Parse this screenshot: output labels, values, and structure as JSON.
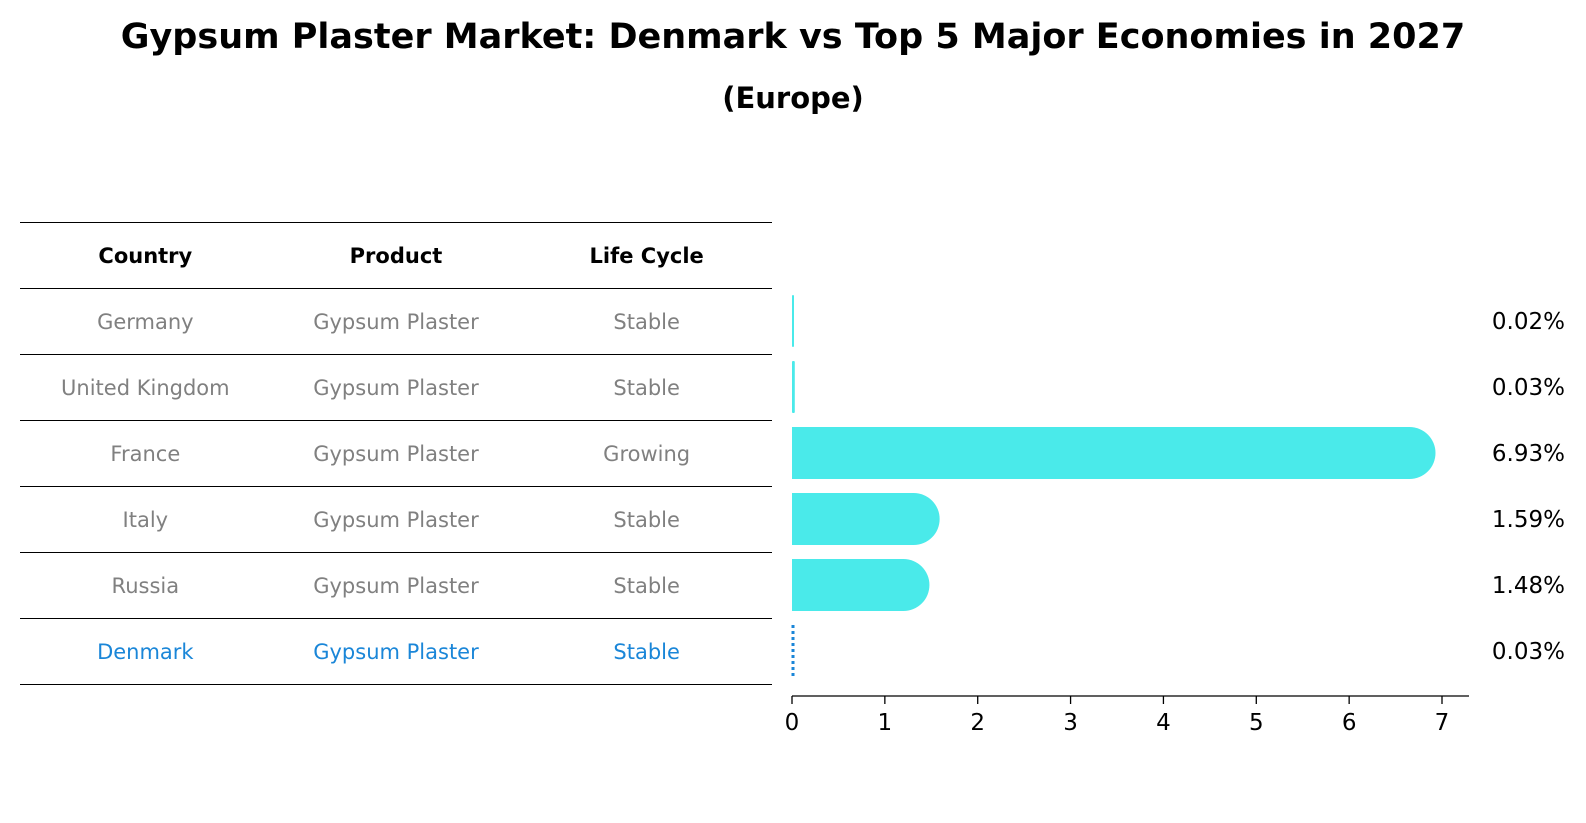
{
  "title": "Gypsum Plaster Market: Denmark vs Top 5 Major Economies in 2027",
  "subtitle": "(Europe)",
  "table": {
    "headers": [
      "Country",
      "Product",
      "Life Cycle"
    ],
    "rows": [
      {
        "country": "Germany",
        "product": "Gypsum Plaster",
        "life_cycle": "Stable",
        "highlight": false
      },
      {
        "country": "United Kingdom",
        "product": "Gypsum Plaster",
        "life_cycle": "Stable",
        "highlight": false
      },
      {
        "country": "France",
        "product": "Gypsum Plaster",
        "life_cycle": "Growing",
        "highlight": false
      },
      {
        "country": "Italy",
        "product": "Gypsum Plaster",
        "life_cycle": "Stable",
        "highlight": false
      },
      {
        "country": "Russia",
        "product": "Gypsum Plaster",
        "life_cycle": "Stable",
        "highlight": false
      },
      {
        "country": "Denmark",
        "product": "Gypsum Plaster",
        "life_cycle": "Stable",
        "highlight": true
      }
    ]
  },
  "chart_data": {
    "type": "bar",
    "orientation": "horizontal",
    "categories": [
      "Germany",
      "United Kingdom",
      "France",
      "Italy",
      "Russia",
      "Denmark"
    ],
    "values": [
      0.02,
      0.03,
      6.93,
      1.59,
      1.48,
      0.03
    ],
    "value_labels": [
      "0.02%",
      "0.03%",
      "6.93%",
      "1.59%",
      "1.48%",
      "0.03%"
    ],
    "xlim": [
      0,
      7.3
    ],
    "xticks": [
      0,
      1,
      2,
      3,
      4,
      5,
      6,
      7
    ],
    "bar_color": "#4aeaea",
    "highlight_color": "#1a86d8",
    "highlight_category": "Denmark",
    "grid": false
  },
  "colors": {
    "muted_text": "#808080",
    "highlight_text": "#1a86d8"
  }
}
